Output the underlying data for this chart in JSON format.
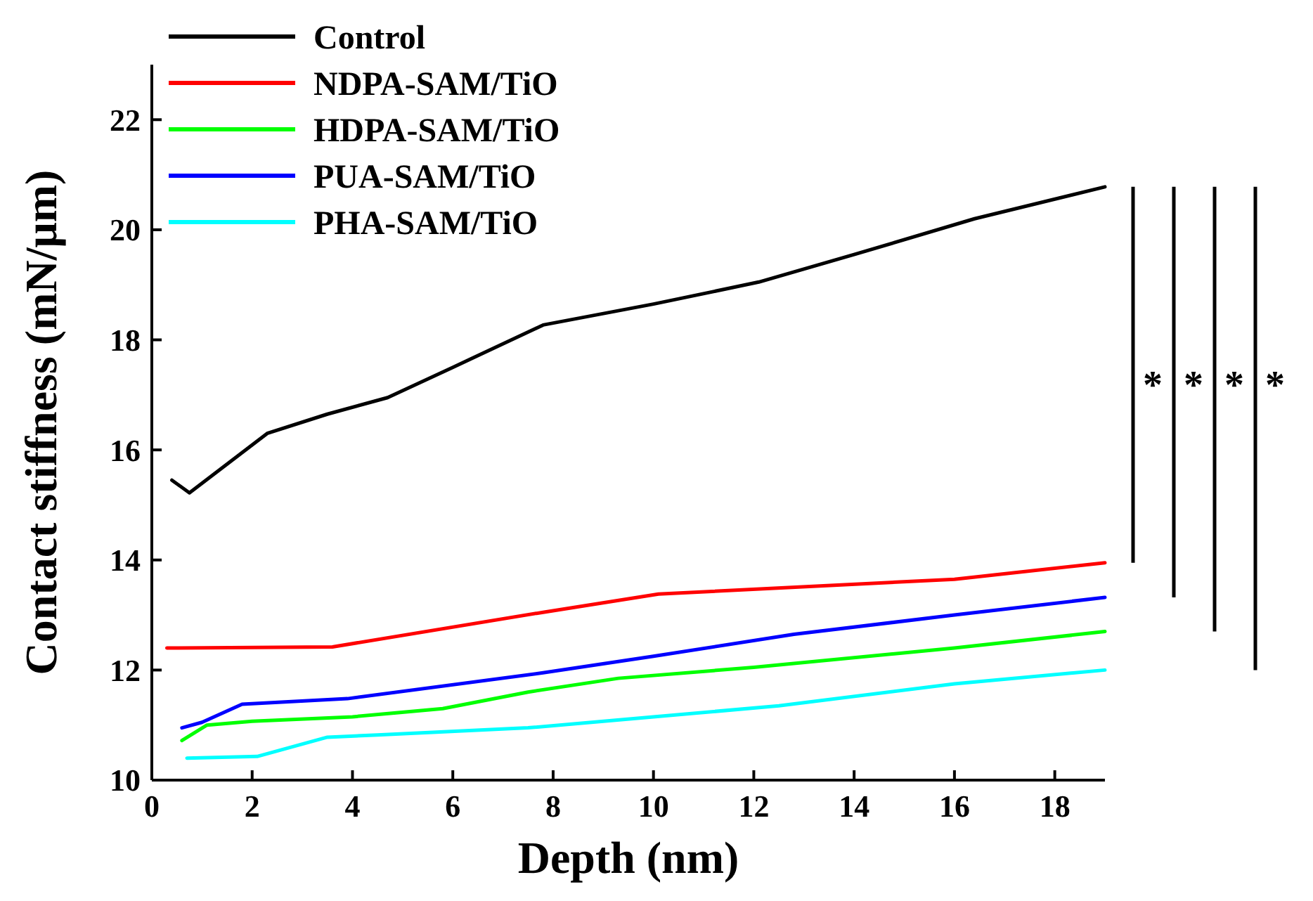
{
  "chart_data": {
    "type": "line",
    "xlabel": "Depth (nm)",
    "ylabel": "Contact stiffness (mN/μm)",
    "xlim": [
      0,
      19
    ],
    "ylim": [
      10,
      23
    ],
    "xticks": [
      0,
      2,
      4,
      6,
      8,
      10,
      12,
      14,
      16,
      18
    ],
    "yticks": [
      10,
      12,
      14,
      16,
      18,
      20,
      22
    ],
    "legend": "top left",
    "grid": false,
    "series": [
      {
        "name": "Control",
        "color": "#000000",
        "x": [
          0.4,
          0.75,
          2.3,
          3.5,
          4.7,
          6,
          7.8,
          10,
          12.1,
          14,
          16.4,
          19
        ],
        "values": [
          15.45,
          15.22,
          16.3,
          16.65,
          16.95,
          17.5,
          18.27,
          18.65,
          19.05,
          19.55,
          20.2,
          20.78
        ]
      },
      {
        "name": "NDPA-SAM/TiO",
        "color": "#ff0000",
        "x": [
          0.3,
          3.6,
          7.8,
          10.1,
          16,
          19
        ],
        "values": [
          12.4,
          12.42,
          13.05,
          13.38,
          13.65,
          13.95
        ]
      },
      {
        "name": "HDPA-SAM/TiO",
        "color": "#00ff00",
        "x": [
          0.6,
          1.1,
          2,
          4,
          5.8,
          7.5,
          9.3,
          12,
          16,
          19
        ],
        "values": [
          10.72,
          11.0,
          11.07,
          11.15,
          11.3,
          11.6,
          11.85,
          12.05,
          12.4,
          12.7
        ]
      },
      {
        "name": "PUA-SAM/TiO",
        "color": "#0000ff",
        "x": [
          0.6,
          1,
          1.8,
          3.9,
          7.8,
          10,
          12.8,
          16,
          19
        ],
        "values": [
          10.95,
          11.05,
          11.38,
          11.48,
          11.95,
          12.25,
          12.65,
          13.0,
          13.32
        ]
      },
      {
        "name": "PHA-SAM/TiO",
        "color": "#00ffff",
        "x": [
          0.7,
          2.1,
          3.5,
          4.5,
          7.5,
          10,
          12.5,
          16,
          19
        ],
        "values": [
          10.4,
          10.43,
          10.78,
          10.82,
          10.95,
          11.15,
          11.35,
          11.75,
          12.0
        ]
      }
    ],
    "annotations": [
      "*",
      "*",
      "*",
      "*"
    ]
  }
}
